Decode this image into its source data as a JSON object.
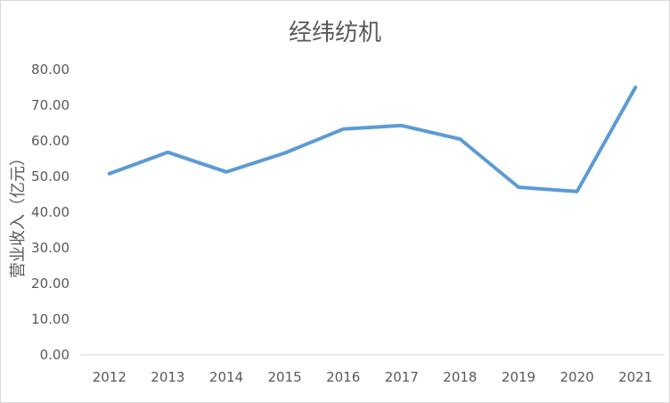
{
  "chart_data": {
    "type": "line",
    "title": "经纬纺机",
    "xlabel": "",
    "ylabel": "营业收入（亿元）",
    "categories": [
      "2012",
      "2013",
      "2014",
      "2015",
      "2016",
      "2017",
      "2018",
      "2019",
      "2020",
      "2021"
    ],
    "series": [
      {
        "values": [
          50.8,
          56.8,
          51.3,
          56.6,
          63.3,
          64.3,
          60.5,
          47.0,
          45.8,
          75.0
        ]
      }
    ],
    "ylim": [
      0,
      80
    ],
    "yticks": [
      "0.00",
      "10.00",
      "20.00",
      "30.00",
      "40.00",
      "50.00",
      "60.00",
      "70.00",
      "80.00"
    ],
    "grid": false,
    "legend": "none",
    "line_color": "#5B9BD5",
    "axis_color": "#D9D9D9",
    "text_color": "#595959"
  }
}
